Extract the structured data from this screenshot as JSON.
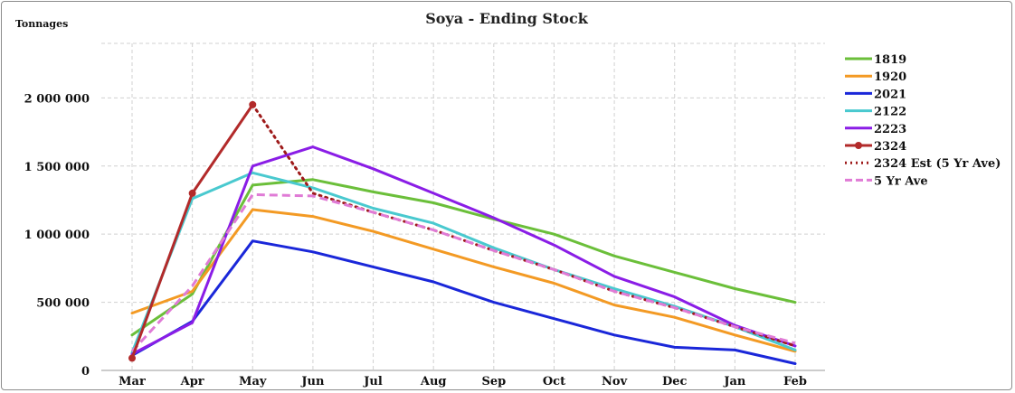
{
  "chart_data": {
    "type": "line",
    "title": "Soya - Ending Stock",
    "ylabel": "Tonnages",
    "xlabel": "",
    "categories": [
      "Mar",
      "Apr",
      "May",
      "Jun",
      "Jul",
      "Aug",
      "Sep",
      "Oct",
      "Nov",
      "Dec",
      "Jan",
      "Feb"
    ],
    "ylim": [
      0,
      2400000
    ],
    "yticks": [
      0,
      500000,
      1000000,
      1500000,
      2000000
    ],
    "ytick_labels": [
      "0",
      "500 000",
      "1 000 000",
      "1 500 000",
      "2 000 000"
    ],
    "grid": true,
    "legend_position": "right",
    "series": [
      {
        "name": "1819",
        "color": "#6bbf3a",
        "style": "solid",
        "values": [
          260000,
          560000,
          1360000,
          1400000,
          1310000,
          1230000,
          1110000,
          1000000,
          840000,
          720000,
          600000,
          500000
        ]
      },
      {
        "name": "1920",
        "color": "#f39a24",
        "style": "solid",
        "values": [
          420000,
          580000,
          1180000,
          1130000,
          1020000,
          890000,
          760000,
          640000,
          480000,
          390000,
          260000,
          140000
        ]
      },
      {
        "name": "2021",
        "color": "#1a27d9",
        "style": "solid",
        "values": [
          110000,
          360000,
          950000,
          870000,
          760000,
          650000,
          500000,
          380000,
          260000,
          170000,
          150000,
          50000
        ]
      },
      {
        "name": "2122",
        "color": "#49c9cf",
        "style": "solid",
        "values": [
          130000,
          1260000,
          1450000,
          1340000,
          1190000,
          1080000,
          900000,
          740000,
          600000,
          470000,
          320000,
          150000
        ]
      },
      {
        "name": "2223",
        "color": "#8a1de6",
        "style": "solid",
        "values": [
          120000,
          350000,
          1500000,
          1640000,
          1480000,
          1300000,
          1120000,
          920000,
          690000,
          540000,
          330000,
          180000
        ]
      },
      {
        "name": "2324",
        "color": "#b22a2a",
        "style": "solid-marker",
        "values": [
          90000,
          1300000,
          1950000,
          null,
          null,
          null,
          null,
          null,
          null,
          null,
          null,
          null
        ]
      },
      {
        "name": "2324 Est (5 Yr Ave)",
        "color": "#9e1a1a",
        "style": "dotted",
        "values": [
          null,
          null,
          1950000,
          1300000,
          1160000,
          1030000,
          880000,
          740000,
          580000,
          460000,
          320000,
          180000
        ]
      },
      {
        "name": "5 Yr Ave",
        "color": "#e07bd6",
        "style": "dashed",
        "values": [
          140000,
          620000,
          1290000,
          1280000,
          1160000,
          1030000,
          880000,
          740000,
          580000,
          460000,
          320000,
          200000
        ]
      }
    ]
  }
}
